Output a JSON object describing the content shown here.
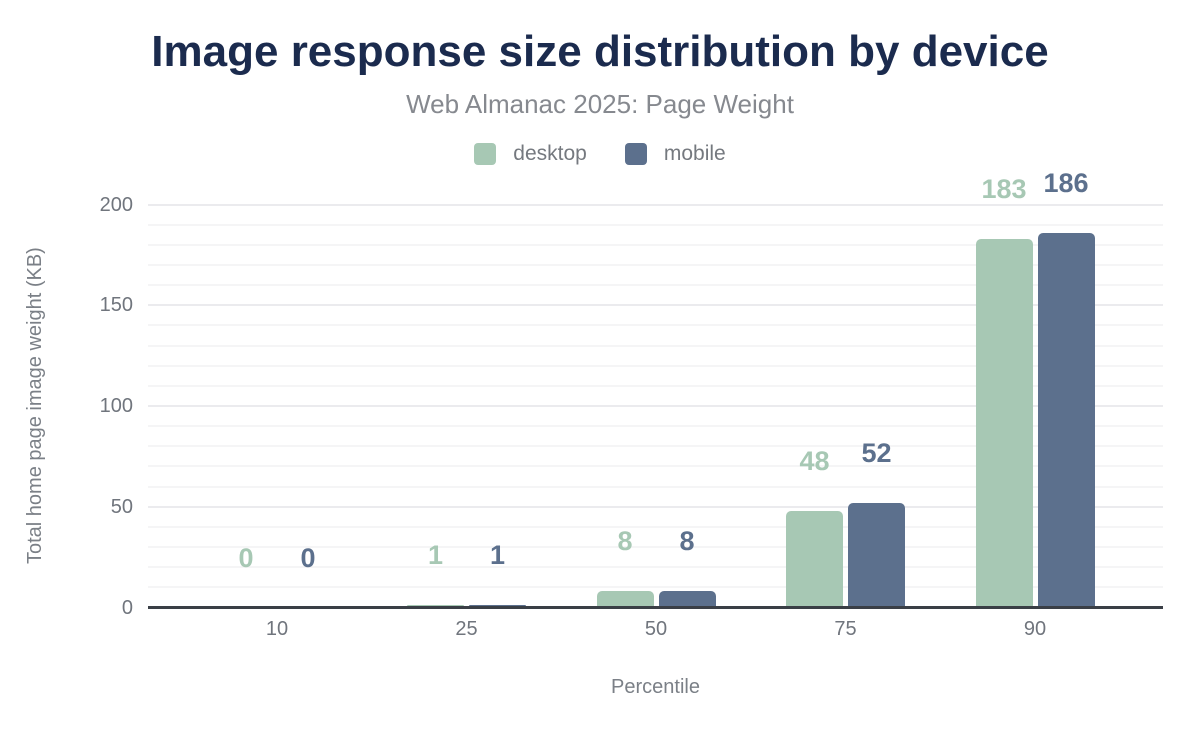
{
  "chart_data": {
    "type": "bar",
    "title": "Image response size distribution by device",
    "subtitle": "Web Almanac 2025: Page Weight",
    "xlabel": "Percentile",
    "ylabel": "Total home page image weight (KB)",
    "categories": [
      "10",
      "25",
      "50",
      "75",
      "90"
    ],
    "series": [
      {
        "name": "desktop",
        "color": "#a7c8b4",
        "values": [
          0,
          1,
          8,
          48,
          183
        ]
      },
      {
        "name": "mobile",
        "color": "#5c708d",
        "values": [
          0,
          1,
          8,
          52,
          186
        ]
      }
    ],
    "value_labels": [
      {
        "series": "desktop",
        "labels": [
          "0",
          "1",
          "8",
          "48",
          "183"
        ]
      },
      {
        "series": "mobile",
        "labels": [
          "0",
          "1",
          "8",
          "52",
          "186"
        ]
      }
    ],
    "ylim": [
      0,
      200
    ],
    "yticks": [
      "0",
      "50",
      "100",
      "150",
      "200"
    ],
    "grid": {
      "visible": true,
      "minor_step": 10,
      "major_step": 50
    },
    "legend_position": "top",
    "colors": {
      "title": "#1b2b4e",
      "subtitle": "#86898f",
      "tick_text": "#70757d",
      "axis_title_text": "#7b8087",
      "legend_text": "#75797f",
      "axis_line": "#3a3f46",
      "grid_minor": "#f5f5f6",
      "grid_major": "#ebebee",
      "background": "#ffffff"
    }
  }
}
